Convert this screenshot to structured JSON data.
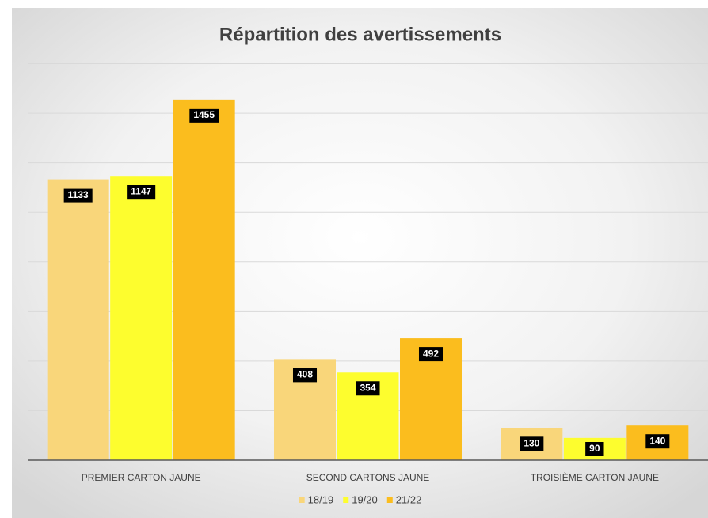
{
  "chart_data": {
    "type": "bar",
    "title": "Répartition des avertissements",
    "categories": [
      "PREMIER CARTON JAUNE",
      "SECOND CARTONS JAUNE",
      "TROISIÈME CARTON JAUNE"
    ],
    "series": [
      {
        "name": "18/19",
        "color": "#f9d67a",
        "values": [
          1133,
          408,
          130
        ]
      },
      {
        "name": "19/20",
        "color": "#fdfd2e",
        "values": [
          1147,
          354,
          90
        ]
      },
      {
        "name": "21/22",
        "color": "#fbbd1e",
        "values": [
          1455,
          492,
          140
        ]
      }
    ],
    "ylim": [
      0,
      1600
    ],
    "yticks": [
      0,
      200,
      400,
      600,
      800,
      1000,
      1200,
      1400,
      1600
    ],
    "grid": true,
    "legend": "bottom"
  }
}
